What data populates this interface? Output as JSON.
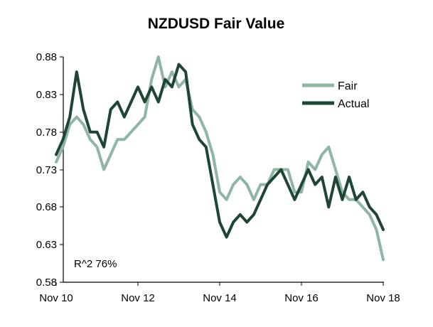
{
  "chart_data": {
    "type": "line",
    "title": "NZDUSD Fair Value",
    "xlabel": "",
    "ylabel": "",
    "x_ticks": [
      "Nov 10",
      "Nov 12",
      "Nov 14",
      "Nov 16",
      "Nov 18"
    ],
    "xlim": [
      "2010-11",
      "2018-11"
    ],
    "y_ticks": [
      "0.88",
      "0.83",
      "0.78",
      "0.73",
      "0.68",
      "0.63",
      "0.58"
    ],
    "ylim": [
      0.58,
      0.88
    ],
    "grid": false,
    "legend_position": "top-right",
    "annotation": "R^2 76%",
    "series": [
      {
        "name": "Fair",
        "color": "#8fb5a3",
        "x": [
          "2010-11",
          "2011-01",
          "2011-03",
          "2011-05",
          "2011-07",
          "2011-09",
          "2011-11",
          "2012-01",
          "2012-03",
          "2012-05",
          "2012-07",
          "2012-09",
          "2012-11",
          "2013-01",
          "2013-03",
          "2013-05",
          "2013-07",
          "2013-09",
          "2013-11",
          "2014-01",
          "2014-03",
          "2014-05",
          "2014-07",
          "2014-09",
          "2014-11",
          "2015-01",
          "2015-03",
          "2015-05",
          "2015-07",
          "2015-09",
          "2015-11",
          "2016-01",
          "2016-03",
          "2016-05",
          "2016-07",
          "2016-09",
          "2016-11",
          "2017-01",
          "2017-03",
          "2017-05",
          "2017-07",
          "2017-09",
          "2017-11",
          "2018-01",
          "2018-03",
          "2018-05",
          "2018-07",
          "2018-09",
          "2018-11"
        ],
        "values": [
          0.74,
          0.76,
          0.79,
          0.8,
          0.79,
          0.77,
          0.76,
          0.73,
          0.75,
          0.77,
          0.77,
          0.78,
          0.79,
          0.8,
          0.85,
          0.88,
          0.84,
          0.86,
          0.84,
          0.85,
          0.81,
          0.8,
          0.78,
          0.75,
          0.7,
          0.69,
          0.71,
          0.72,
          0.71,
          0.69,
          0.71,
          0.71,
          0.73,
          0.73,
          0.73,
          0.7,
          0.7,
          0.74,
          0.73,
          0.75,
          0.76,
          0.73,
          0.7,
          0.69,
          0.69,
          0.68,
          0.67,
          0.65,
          0.61
        ]
      },
      {
        "name": "Actual",
        "color": "#1f4533",
        "x": [
          "2010-11",
          "2011-01",
          "2011-03",
          "2011-05",
          "2011-07",
          "2011-09",
          "2011-11",
          "2012-01",
          "2012-03",
          "2012-05",
          "2012-07",
          "2012-09",
          "2012-11",
          "2013-01",
          "2013-03",
          "2013-05",
          "2013-07",
          "2013-09",
          "2013-11",
          "2014-01",
          "2014-03",
          "2014-05",
          "2014-07",
          "2014-09",
          "2014-11",
          "2015-01",
          "2015-03",
          "2015-05",
          "2015-07",
          "2015-09",
          "2015-11",
          "2016-01",
          "2016-03",
          "2016-05",
          "2016-07",
          "2016-09",
          "2016-11",
          "2017-01",
          "2017-03",
          "2017-05",
          "2017-07",
          "2017-09",
          "2017-11",
          "2018-01",
          "2018-03",
          "2018-05",
          "2018-07",
          "2018-09",
          "2018-11"
        ],
        "values": [
          0.75,
          0.77,
          0.8,
          0.86,
          0.81,
          0.78,
          0.78,
          0.76,
          0.81,
          0.82,
          0.8,
          0.82,
          0.84,
          0.82,
          0.84,
          0.82,
          0.85,
          0.84,
          0.87,
          0.86,
          0.79,
          0.77,
          0.76,
          0.71,
          0.66,
          0.64,
          0.66,
          0.67,
          0.66,
          0.67,
          0.69,
          0.71,
          0.72,
          0.73,
          0.71,
          0.69,
          0.71,
          0.73,
          0.71,
          0.72,
          0.68,
          0.72,
          0.69,
          0.72,
          0.69,
          0.7,
          0.68,
          0.67,
          0.65
        ]
      }
    ]
  }
}
